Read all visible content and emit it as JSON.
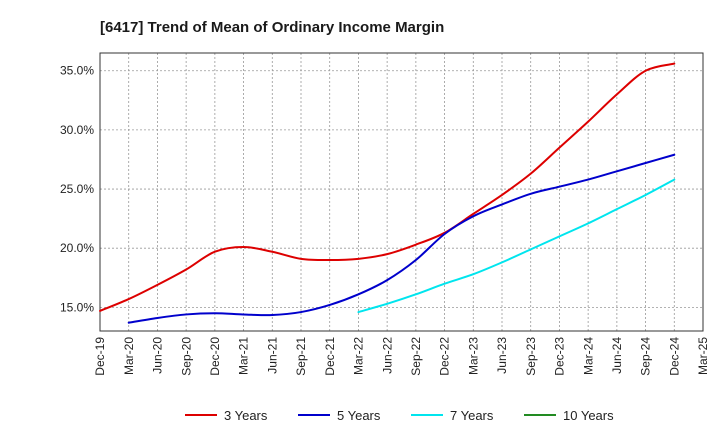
{
  "chart_data": {
    "type": "line",
    "title": "[6417]  Trend of Mean of Ordinary Income Margin",
    "xlabel": "",
    "ylabel": "",
    "x_ticks": [
      "Dec-19",
      "Mar-20",
      "Jun-20",
      "Sep-20",
      "Dec-20",
      "Mar-21",
      "Jun-21",
      "Sep-21",
      "Dec-21",
      "Mar-22",
      "Jun-22",
      "Sep-22",
      "Dec-22",
      "Mar-23",
      "Jun-23",
      "Sep-23",
      "Dec-23",
      "Mar-24",
      "Jun-24",
      "Sep-24",
      "Dec-24",
      "Mar-25"
    ],
    "y_ticks": [
      15.0,
      20.0,
      25.0,
      30.0,
      35.0
    ],
    "y_tick_labels": [
      "15.0%",
      "20.0%",
      "25.0%",
      "30.0%",
      "35.0%"
    ],
    "ylim": [
      13.0,
      36.5
    ],
    "grid": true,
    "legend_position": "bottom",
    "series": [
      {
        "name": "3 Years",
        "color": "#dd0000",
        "x": [
          "Dec-19",
          "Mar-20",
          "Jun-20",
          "Sep-20",
          "Dec-20",
          "Mar-21",
          "Jun-21",
          "Sep-21",
          "Dec-21",
          "Mar-22",
          "Jun-22",
          "Sep-22",
          "Dec-22",
          "Mar-23",
          "Jun-23",
          "Sep-23",
          "Dec-23",
          "Mar-24",
          "Jun-24",
          "Sep-24",
          "Dec-24"
        ],
        "values": [
          14.7,
          15.7,
          16.9,
          18.2,
          19.7,
          20.1,
          19.7,
          19.1,
          19.0,
          19.1,
          19.5,
          20.3,
          21.3,
          22.9,
          24.5,
          26.3,
          28.5,
          30.7,
          33.0,
          35.0,
          35.6
        ]
      },
      {
        "name": "5 Years",
        "color": "#0000cc",
        "x": [
          "Mar-20",
          "Jun-20",
          "Sep-20",
          "Dec-20",
          "Mar-21",
          "Jun-21",
          "Sep-21",
          "Dec-21",
          "Mar-22",
          "Jun-22",
          "Sep-22",
          "Dec-22",
          "Mar-23",
          "Jun-23",
          "Sep-23",
          "Dec-23",
          "Mar-24",
          "Jun-24",
          "Sep-24",
          "Dec-24"
        ],
        "values": [
          13.7,
          14.1,
          14.4,
          14.5,
          14.4,
          14.35,
          14.6,
          15.2,
          16.1,
          17.3,
          19.0,
          21.2,
          22.7,
          23.7,
          24.6,
          25.2,
          25.8,
          26.5,
          27.2,
          27.9
        ]
      },
      {
        "name": "7 Years",
        "color": "#00e5ee",
        "x": [
          "Mar-22",
          "Jun-22",
          "Sep-22",
          "Dec-22",
          "Mar-23",
          "Jun-23",
          "Sep-23",
          "Dec-23",
          "Mar-24",
          "Jun-24",
          "Sep-24",
          "Dec-24"
        ],
        "values": [
          14.6,
          15.3,
          16.1,
          17.0,
          17.8,
          18.8,
          19.9,
          21.0,
          22.1,
          23.3,
          24.5,
          25.8
        ]
      },
      {
        "name": "10 Years",
        "color": "#228b22",
        "x": [],
        "values": []
      }
    ]
  }
}
